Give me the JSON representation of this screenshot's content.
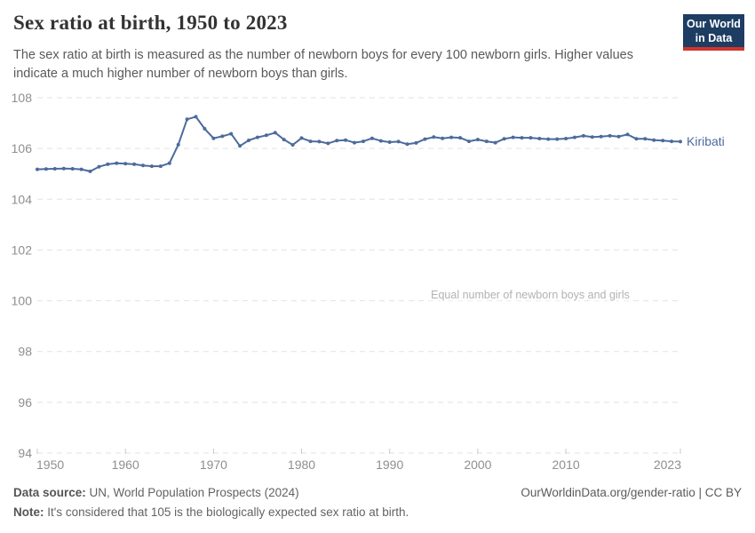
{
  "header": {
    "title": "Sex ratio at birth, 1950 to 2023",
    "subtitle": "The sex ratio at birth is measured as the number of newborn boys for every 100 newborn girls. Higher values indicate a much higher number of newborn boys than girls.",
    "logo": {
      "line1": "Our World",
      "line2": "in Data"
    }
  },
  "chart_data": {
    "type": "line",
    "title": "Sex ratio at birth, 1950 to 2023",
    "xlabel": "",
    "ylabel": "",
    "xlim": [
      1950,
      2023
    ],
    "ylim": [
      94,
      108
    ],
    "x_ticks": [
      1950,
      1960,
      1970,
      1980,
      1990,
      2000,
      2010,
      2023
    ],
    "y_ticks": [
      94,
      96,
      98,
      100,
      102,
      104,
      106,
      108
    ],
    "grid": "horizontal-dashed",
    "legend_position": "end-of-line-label",
    "annotation": {
      "text": "Equal number of newborn boys and girls",
      "y": 100,
      "x_center": 597
    },
    "series": [
      {
        "name": "Kiribati",
        "color": "#4c6a9c",
        "x": [
          1950,
          1951,
          1952,
          1953,
          1954,
          1955,
          1956,
          1957,
          1958,
          1959,
          1960,
          1961,
          1962,
          1963,
          1964,
          1965,
          1966,
          1967,
          1968,
          1969,
          1970,
          1971,
          1972,
          1973,
          1974,
          1975,
          1976,
          1977,
          1978,
          1979,
          1980,
          1981,
          1982,
          1983,
          1984,
          1985,
          1986,
          1987,
          1988,
          1989,
          1990,
          1991,
          1992,
          1993,
          1994,
          1995,
          1996,
          1997,
          1998,
          1999,
          2000,
          2001,
          2002,
          2003,
          2004,
          2005,
          2006,
          2007,
          2008,
          2009,
          2010,
          2011,
          2012,
          2013,
          2014,
          2015,
          2016,
          2017,
          2018,
          2019,
          2020,
          2021,
          2022,
          2023
        ],
        "values": [
          105.18,
          105.19,
          105.2,
          105.21,
          105.2,
          105.18,
          105.1,
          105.28,
          105.38,
          105.42,
          105.4,
          105.38,
          105.33,
          105.3,
          105.3,
          105.42,
          106.15,
          107.15,
          107.25,
          106.78,
          106.4,
          106.48,
          106.58,
          106.1,
          106.32,
          106.44,
          106.52,
          106.62,
          106.35,
          106.14,
          106.41,
          106.28,
          106.27,
          106.2,
          106.31,
          106.33,
          106.23,
          106.28,
          106.4,
          106.3,
          106.25,
          106.27,
          106.17,
          106.22,
          106.37,
          106.45,
          106.4,
          106.44,
          106.42,
          106.28,
          106.35,
          106.28,
          106.23,
          106.38,
          106.44,
          106.42,
          106.42,
          106.39,
          106.37,
          106.37,
          106.39,
          106.44,
          106.5,
          106.45,
          106.47,
          106.5,
          106.47,
          106.55,
          106.38,
          106.38,
          106.33,
          106.31,
          106.28,
          106.27
        ]
      }
    ]
  },
  "footer": {
    "source_label": "Data source:",
    "source_text": " UN, World Population Prospects (2024)",
    "note_label": "Note:",
    "note_text": " It's considered that 105 is the biologically expected sex ratio at birth.",
    "link": "OurWorldinData.org/gender-ratio | CC BY"
  },
  "colors": {
    "line": "#4c6a9c",
    "grid": "#e2e2e2",
    "axis_text": "#8f8f8f",
    "annotation_text": "#b2b2b2",
    "tick_mark": "#c9c9c9",
    "logo_bg": "#1d3d63",
    "logo_stripe": "#d0352c"
  }
}
